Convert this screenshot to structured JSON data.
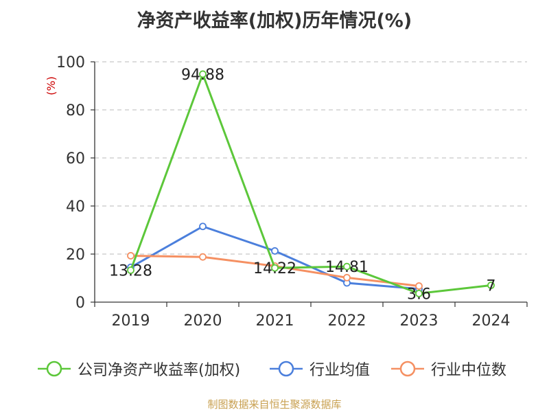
{
  "chart_data": {
    "type": "line",
    "title": "净资产收益率(加权)历年情况(%)",
    "ylabel": "(%)",
    "xlabel": "",
    "categories": [
      "2019",
      "2020",
      "2021",
      "2022",
      "2023",
      "2024"
    ],
    "ylim": [
      0,
      100
    ],
    "yticks": [
      0,
      20,
      40,
      60,
      80,
      100
    ],
    "grid": true,
    "legend_position": "bottom",
    "series": [
      {
        "name": "公司净资产收益率(加权)",
        "color": "#5cc73a",
        "values": [
          13.28,
          94.88,
          14.22,
          14.81,
          3.6,
          7
        ],
        "labels": [
          "13.28",
          "94.88",
          "14.22",
          "14.81",
          "3.6",
          "7"
        ]
      },
      {
        "name": "行业均值",
        "color": "#4b7fdc",
        "values": [
          14.5,
          31.5,
          21.3,
          8.0,
          5.5,
          null
        ]
      },
      {
        "name": "行业中位数",
        "color": "#f59062",
        "values": [
          19.3,
          18.8,
          15.0,
          10.2,
          6.7,
          null
        ]
      }
    ]
  },
  "source_note": "制图数据来自恒生聚源数据库"
}
